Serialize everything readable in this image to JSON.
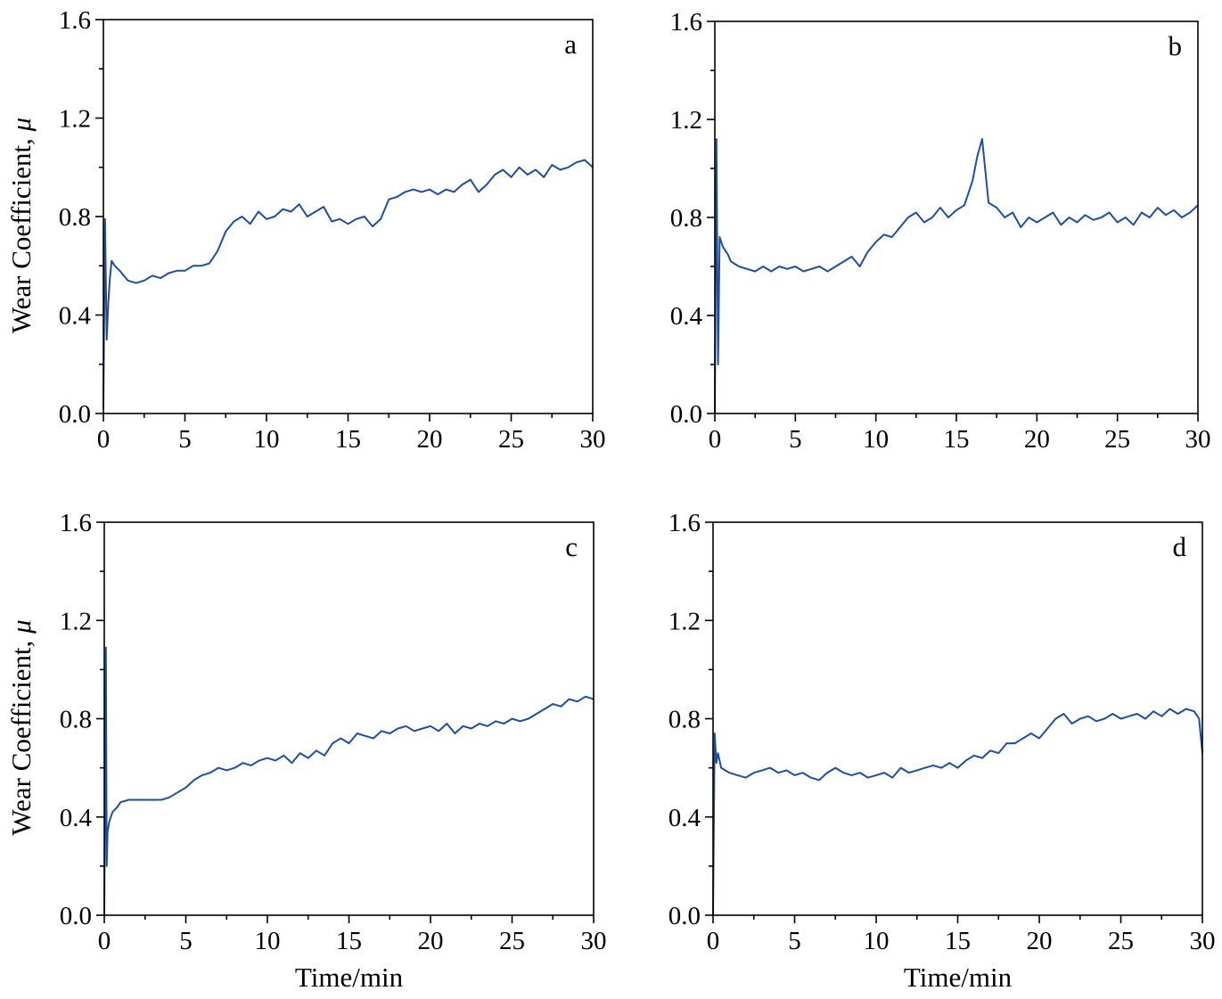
{
  "figure": {
    "ylabel_text": "Wear Coefficient, ",
    "ylabel_symbol": "μ",
    "xlabel": "Time/min",
    "line_color": "#1f4e9e"
  },
  "chart_data": [
    {
      "type": "line",
      "panel_label": "a",
      "xlabel": "",
      "ylabel": "Wear Coefficient, μ",
      "xlim": [
        0,
        30
      ],
      "ylim": [
        0.0,
        1.6
      ],
      "xticks": [
        0,
        5,
        10,
        15,
        20,
        25,
        30
      ],
      "yticks": [
        0.0,
        0.4,
        0.8,
        1.2,
        1.6
      ],
      "grid": false,
      "series": [
        {
          "x": [
            0,
            0.1,
            0.2,
            0.3,
            0.4,
            0.5,
            0.7,
            1,
            1.5,
            2,
            2.5,
            3,
            3.5,
            4,
            4.5,
            5,
            5.5,
            6,
            6.5,
            7,
            7.5,
            8,
            8.5,
            9,
            9.5,
            10,
            10.5,
            11,
            11.5,
            12,
            12.5,
            13,
            13.5,
            14,
            14.5,
            15,
            15.5,
            16,
            16.5,
            17,
            17.5,
            18,
            18.5,
            19,
            19.5,
            20,
            20.5,
            21,
            21.5,
            22,
            22.5,
            23,
            23.5,
            24,
            24.5,
            25,
            25.5,
            26,
            26.5,
            27,
            27.5,
            28,
            28.5,
            29,
            29.5,
            30
          ],
          "y": [
            0.02,
            0.79,
            0.3,
            0.45,
            0.55,
            0.62,
            0.6,
            0.58,
            0.54,
            0.53,
            0.54,
            0.56,
            0.55,
            0.57,
            0.58,
            0.58,
            0.6,
            0.6,
            0.61,
            0.66,
            0.74,
            0.78,
            0.8,
            0.77,
            0.82,
            0.79,
            0.8,
            0.83,
            0.82,
            0.85,
            0.8,
            0.82,
            0.84,
            0.78,
            0.79,
            0.77,
            0.79,
            0.8,
            0.76,
            0.79,
            0.87,
            0.88,
            0.9,
            0.91,
            0.9,
            0.91,
            0.89,
            0.91,
            0.9,
            0.93,
            0.95,
            0.9,
            0.93,
            0.97,
            0.99,
            0.96,
            1.0,
            0.97,
            0.99,
            0.96,
            1.01,
            0.99,
            1.0,
            1.02,
            1.03,
            1.0
          ]
        }
      ]
    },
    {
      "type": "line",
      "panel_label": "b",
      "xlabel": "",
      "ylabel": "",
      "xlim": [
        0,
        30
      ],
      "ylim": [
        0.0,
        1.6
      ],
      "xticks": [
        0,
        5,
        10,
        15,
        20,
        25,
        30
      ],
      "yticks": [
        0.0,
        0.4,
        0.8,
        1.2,
        1.6
      ],
      "grid": false,
      "series": [
        {
          "x": [
            0,
            0.1,
            0.2,
            0.3,
            0.5,
            0.8,
            1,
            1.5,
            2,
            2.5,
            3,
            3.5,
            4,
            4.5,
            5,
            5.5,
            6,
            6.5,
            7,
            7.5,
            8,
            8.5,
            9,
            9.5,
            10,
            10.5,
            11,
            11.5,
            12,
            12.5,
            13,
            13.5,
            14,
            14.5,
            15,
            15.5,
            16,
            16.3,
            16.6,
            17,
            17.5,
            18,
            18.5,
            19,
            19.5,
            20,
            20.5,
            21,
            21.5,
            22,
            22.5,
            23,
            23.5,
            24,
            24.5,
            25,
            25.5,
            26,
            26.5,
            27,
            27.5,
            28,
            28.5,
            29,
            29.5,
            30
          ],
          "y": [
            0.0,
            1.12,
            0.2,
            0.72,
            0.68,
            0.65,
            0.62,
            0.6,
            0.59,
            0.58,
            0.6,
            0.58,
            0.6,
            0.59,
            0.6,
            0.58,
            0.59,
            0.6,
            0.58,
            0.6,
            0.62,
            0.64,
            0.6,
            0.66,
            0.7,
            0.73,
            0.72,
            0.76,
            0.8,
            0.82,
            0.78,
            0.8,
            0.84,
            0.8,
            0.83,
            0.85,
            0.95,
            1.05,
            1.12,
            0.86,
            0.84,
            0.8,
            0.82,
            0.76,
            0.8,
            0.78,
            0.8,
            0.82,
            0.77,
            0.8,
            0.78,
            0.81,
            0.79,
            0.8,
            0.82,
            0.78,
            0.8,
            0.77,
            0.82,
            0.8,
            0.84,
            0.81,
            0.83,
            0.8,
            0.82,
            0.85
          ]
        }
      ]
    },
    {
      "type": "line",
      "panel_label": "c",
      "xlabel": "Time/min",
      "ylabel": "Wear Coefficient, μ",
      "xlim": [
        0,
        30
      ],
      "ylim": [
        0.0,
        1.6
      ],
      "xticks": [
        0,
        5,
        10,
        15,
        20,
        25,
        30
      ],
      "yticks": [
        0.0,
        0.4,
        0.8,
        1.2,
        1.6
      ],
      "grid": false,
      "series": [
        {
          "x": [
            0,
            0.1,
            0.15,
            0.2,
            0.3,
            0.5,
            0.8,
            1,
            1.5,
            2,
            2.5,
            3,
            3.5,
            4,
            4.5,
            5,
            5.5,
            6,
            6.5,
            7,
            7.5,
            8,
            8.5,
            9,
            9.5,
            10,
            10.5,
            11,
            11.5,
            12,
            12.5,
            13,
            13.5,
            14,
            14.5,
            15,
            15.5,
            16,
            16.5,
            17,
            17.5,
            18,
            18.5,
            19,
            19.5,
            20,
            20.5,
            21,
            21.5,
            22,
            22.5,
            23,
            23.5,
            24,
            24.5,
            25,
            25.5,
            26,
            26.5,
            27,
            27.5,
            28,
            28.5,
            29,
            29.5,
            30
          ],
          "y": [
            0.0,
            1.09,
            0.2,
            0.34,
            0.38,
            0.42,
            0.44,
            0.46,
            0.47,
            0.47,
            0.47,
            0.47,
            0.47,
            0.48,
            0.5,
            0.52,
            0.55,
            0.57,
            0.58,
            0.6,
            0.59,
            0.6,
            0.62,
            0.61,
            0.63,
            0.64,
            0.63,
            0.65,
            0.62,
            0.66,
            0.64,
            0.67,
            0.65,
            0.7,
            0.72,
            0.7,
            0.74,
            0.73,
            0.72,
            0.75,
            0.74,
            0.76,
            0.77,
            0.75,
            0.76,
            0.77,
            0.75,
            0.78,
            0.74,
            0.77,
            0.76,
            0.78,
            0.77,
            0.79,
            0.78,
            0.8,
            0.79,
            0.8,
            0.82,
            0.84,
            0.86,
            0.85,
            0.88,
            0.87,
            0.89,
            0.88
          ]
        }
      ]
    },
    {
      "type": "line",
      "panel_label": "d",
      "xlabel": "Time/min",
      "ylabel": "",
      "xlim": [
        0,
        30
      ],
      "ylim": [
        0.0,
        1.6
      ],
      "xticks": [
        0,
        5,
        10,
        15,
        20,
        25,
        30
      ],
      "yticks": [
        0.0,
        0.4,
        0.8,
        1.2,
        1.6
      ],
      "grid": false,
      "series": [
        {
          "x": [
            0,
            0.1,
            0.2,
            0.3,
            0.5,
            1,
            1.5,
            2,
            2.5,
            3,
            3.5,
            4,
            4.5,
            5,
            5.5,
            6,
            6.5,
            7,
            7.5,
            8,
            8.5,
            9,
            9.5,
            10,
            10.5,
            11,
            11.5,
            12,
            12.5,
            13,
            13.5,
            14,
            14.5,
            15,
            15.5,
            16,
            16.5,
            17,
            17.5,
            18,
            18.5,
            19,
            19.5,
            20,
            20.5,
            21,
            21.5,
            22,
            22.5,
            23,
            23.5,
            24,
            24.5,
            25,
            25.5,
            26,
            26.5,
            27,
            27.5,
            28,
            28.5,
            29,
            29.5,
            29.8,
            30
          ],
          "y": [
            0.0,
            0.74,
            0.62,
            0.66,
            0.6,
            0.58,
            0.57,
            0.56,
            0.58,
            0.59,
            0.6,
            0.58,
            0.59,
            0.57,
            0.58,
            0.56,
            0.55,
            0.58,
            0.6,
            0.58,
            0.57,
            0.58,
            0.56,
            0.57,
            0.58,
            0.56,
            0.6,
            0.58,
            0.59,
            0.6,
            0.61,
            0.6,
            0.62,
            0.6,
            0.63,
            0.65,
            0.64,
            0.67,
            0.66,
            0.7,
            0.7,
            0.72,
            0.74,
            0.72,
            0.76,
            0.8,
            0.82,
            0.78,
            0.8,
            0.81,
            0.79,
            0.8,
            0.82,
            0.8,
            0.81,
            0.82,
            0.8,
            0.83,
            0.81,
            0.84,
            0.82,
            0.84,
            0.83,
            0.8,
            0.66
          ]
        }
      ]
    }
  ]
}
